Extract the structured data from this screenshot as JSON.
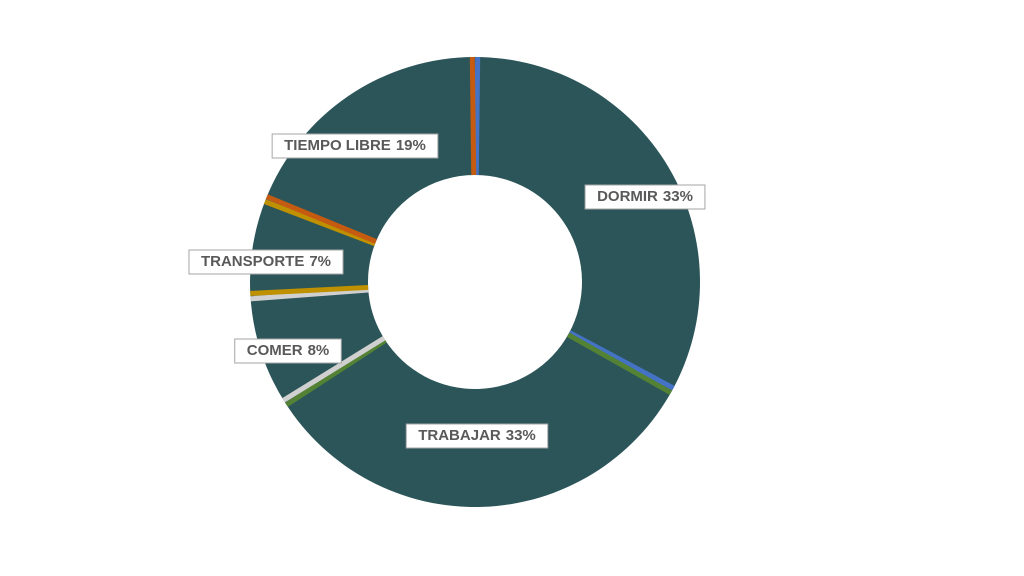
{
  "chart_data": {
    "type": "donut",
    "categories": [
      "DORMIR",
      "TRABAJAR",
      "COMER",
      "TRANSPORTE",
      "TIEMPO LIBRE"
    ],
    "values": [
      33,
      33,
      8,
      7,
      19
    ],
    "value_labels": [
      "33%",
      "33%",
      "8%",
      "7%",
      "19%"
    ],
    "fill": "#2b5559",
    "colors": [
      "#4472c4",
      "#548235",
      "#d0d0d0",
      "#bf9000",
      "#c55a11"
    ]
  }
}
